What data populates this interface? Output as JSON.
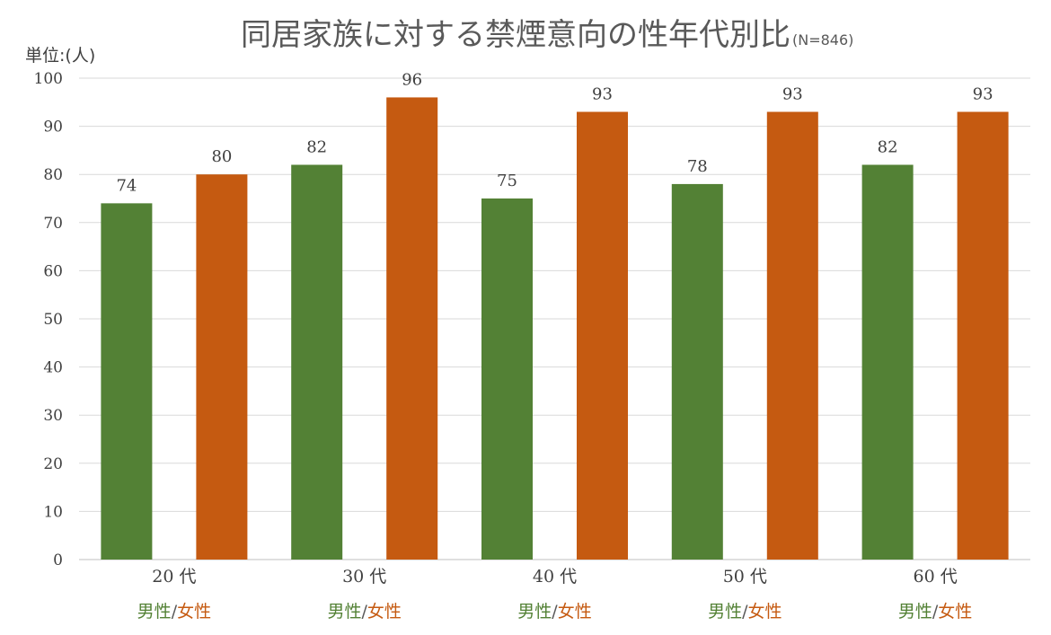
{
  "chart_data": {
    "type": "bar",
    "title": "同居家族に対する禁煙意向の性年代別比",
    "subtitle": "(N=846)",
    "unit_label": "単位:(人)",
    "categories": [
      "20 代",
      "30 代",
      "40 代",
      "50 代",
      "60 代"
    ],
    "series": [
      {
        "name": "男性",
        "values": [
          74,
          82,
          75,
          78,
          82
        ],
        "color": "#538135"
      },
      {
        "name": "女性",
        "values": [
          80,
          96,
          93,
          93,
          93
        ],
        "color": "#C55A11"
      }
    ],
    "ylim": [
      0,
      100
    ],
    "yticks": [
      0,
      10,
      20,
      30,
      40,
      50,
      60,
      70,
      80,
      90,
      100
    ],
    "grid": true,
    "gender_label": {
      "male": "男性",
      "separator": "/",
      "female": "女性"
    }
  }
}
